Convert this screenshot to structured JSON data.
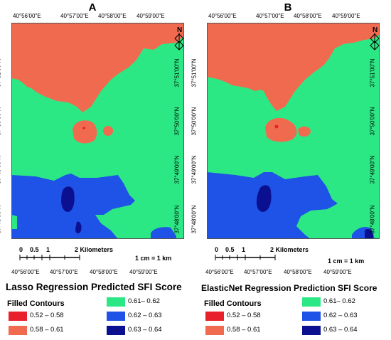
{
  "colors": {
    "c1": "#e8202b",
    "c2": "#f06a4f",
    "c3": "#2ce884",
    "c4": "#1f52e6",
    "c5": "#0a108f"
  },
  "x_ticks": [
    "40°56'00\"E",
    "40°57'00\"E",
    "40°58'00\"E",
    "40°59'00\"E"
  ],
  "y_ticks": [
    "37°51'00\"N",
    "37°50'00\"N",
    "37°49'00\"N",
    "37°48'00\"N"
  ],
  "scale": {
    "ticks": [
      "0",
      "0.5",
      "1",
      "2 Kilometers"
    ],
    "unit": "1 cm = 1 km"
  },
  "north_symbol": "N",
  "panels": [
    {
      "letter": "A",
      "legend_title": "Lasso Regression Predicted SFI Score",
      "legend_subtitle": "Filled Contours",
      "classes": [
        "0.52 – 0.58",
        "0.58 – 0.61",
        "0.61– 0.62",
        "0.62 – 0.63",
        "0.63 – 0.64"
      ]
    },
    {
      "letter": "B",
      "legend_title": "ElasticNet Regression Prediction SFI Score",
      "legend_subtitle": "Filled Contours",
      "classes": [
        "0.52 – 0.58",
        "0.58 – 0.61",
        "0.61– 0.62",
        "0.62 – 0.63",
        "0.63 – 0.64"
      ]
    }
  ]
}
